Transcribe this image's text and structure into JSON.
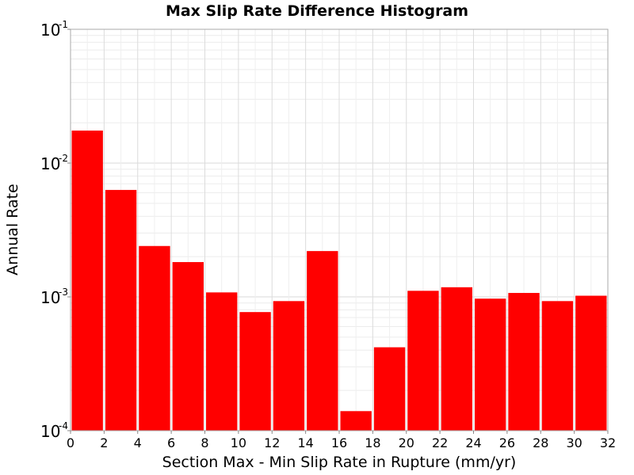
{
  "chart_data": {
    "type": "bar",
    "title": "Max Slip Rate Difference Histogram",
    "xlabel": "Section Max - Min Slip Rate in Rupture (mm/yr)",
    "ylabel": "Annual Rate",
    "x_ticks": [
      "0",
      "2",
      "4",
      "6",
      "8",
      "10",
      "12",
      "14",
      "16",
      "18",
      "20",
      "22",
      "24",
      "26",
      "28",
      "30",
      "32"
    ],
    "y_scale": "log",
    "y_ticks": [
      {
        "base": "10",
        "exp": "-4"
      },
      {
        "base": "10",
        "exp": "-3"
      },
      {
        "base": "10",
        "exp": "-2"
      },
      {
        "base": "10",
        "exp": "-1"
      }
    ],
    "xlim": [
      0,
      32
    ],
    "ylim": [
      0.0001,
      0.1
    ],
    "bin_width": 2,
    "bar_color": "#ff0000",
    "grid": true,
    "legend": "none",
    "bars": [
      {
        "x0": 0,
        "x1": 2,
        "value": 0.0175
      },
      {
        "x0": 2,
        "x1": 4,
        "value": 0.0063
      },
      {
        "x0": 4,
        "x1": 6,
        "value": 0.0024
      },
      {
        "x0": 6,
        "x1": 8,
        "value": 0.00182
      },
      {
        "x0": 8,
        "x1": 10,
        "value": 0.00108
      },
      {
        "x0": 10,
        "x1": 12,
        "value": 0.00077
      },
      {
        "x0": 12,
        "x1": 14,
        "value": 0.00093
      },
      {
        "x0": 14,
        "x1": 16,
        "value": 0.0022
      },
      {
        "x0": 16,
        "x1": 18,
        "value": 0.00014
      },
      {
        "x0": 18,
        "x1": 20,
        "value": 0.00042
      },
      {
        "x0": 20,
        "x1": 22,
        "value": 0.00111
      },
      {
        "x0": 22,
        "x1": 24,
        "value": 0.00118
      },
      {
        "x0": 24,
        "x1": 26,
        "value": 0.00097
      },
      {
        "x0": 26,
        "x1": 28,
        "value": 0.00107
      },
      {
        "x0": 28,
        "x1": 30,
        "value": 0.00093
      },
      {
        "x0": 30,
        "x1": 32,
        "value": 0.00102
      }
    ]
  }
}
